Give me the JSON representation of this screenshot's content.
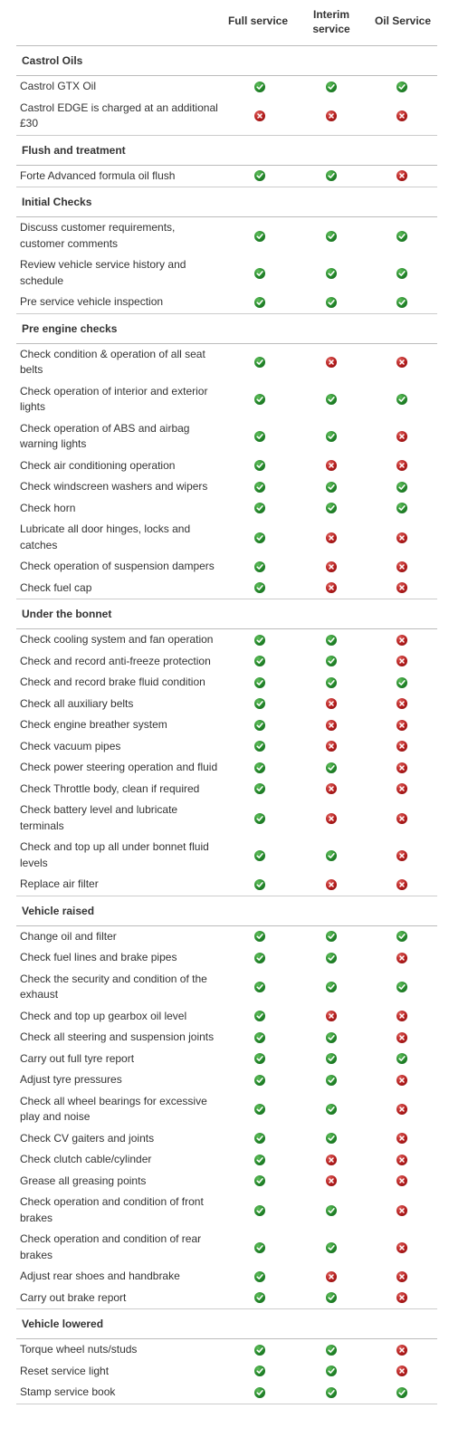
{
  "header": {
    "full_label": "Full service",
    "interim_label": "Interim service",
    "oil_label": "Oil Service"
  },
  "status_icons": {
    "yes": "check-icon",
    "no": "cross-icon",
    "yes_color": "#23862a",
    "no_color": "#b21b1b"
  },
  "sections": [
    {
      "title": "Castrol Oils",
      "rows": [
        {
          "label": "Castrol GTX Oil",
          "values": [
            true,
            true,
            true
          ]
        },
        {
          "label": "Castrol EDGE is charged at an additional £30",
          "values": [
            false,
            false,
            false
          ]
        }
      ]
    },
    {
      "title": "Flush and treatment",
      "rows": [
        {
          "label": "Forte Advanced formula oil flush",
          "values": [
            true,
            true,
            false
          ]
        }
      ]
    },
    {
      "title": "Initial Checks",
      "rows": [
        {
          "label": "Discuss customer requirements, customer comments",
          "values": [
            true,
            true,
            true
          ]
        },
        {
          "label": "Review vehicle service history and schedule",
          "values": [
            true,
            true,
            true
          ]
        },
        {
          "label": "Pre service vehicle inspection",
          "values": [
            true,
            true,
            true
          ]
        }
      ]
    },
    {
      "title": "Pre engine checks",
      "rows": [
        {
          "label": "Check condition & operation of all seat belts",
          "values": [
            true,
            false,
            false
          ]
        },
        {
          "label": "Check operation of interior and exterior lights",
          "values": [
            true,
            true,
            true
          ]
        },
        {
          "label": "Check operation of ABS and airbag warning lights",
          "values": [
            true,
            true,
            false
          ]
        },
        {
          "label": "Check air conditioning operation",
          "values": [
            true,
            false,
            false
          ]
        },
        {
          "label": "Check windscreen washers and wipers",
          "values": [
            true,
            true,
            true
          ]
        },
        {
          "label": "Check horn",
          "values": [
            true,
            true,
            true
          ]
        },
        {
          "label": "Lubricate all door hinges, locks and catches",
          "values": [
            true,
            false,
            false
          ]
        },
        {
          "label": "Check operation of suspension dampers",
          "values": [
            true,
            false,
            false
          ]
        },
        {
          "label": "Check fuel cap",
          "values": [
            true,
            false,
            false
          ]
        }
      ]
    },
    {
      "title": "Under the bonnet",
      "rows": [
        {
          "label": "Check cooling system and fan operation",
          "values": [
            true,
            true,
            false
          ]
        },
        {
          "label": "Check and record anti-freeze protection",
          "values": [
            true,
            true,
            false
          ]
        },
        {
          "label": "Check and record brake fluid condition",
          "values": [
            true,
            true,
            true
          ]
        },
        {
          "label": "Check all auxiliary belts",
          "values": [
            true,
            false,
            false
          ]
        },
        {
          "label": "Check engine breather system",
          "values": [
            true,
            false,
            false
          ]
        },
        {
          "label": "Check vacuum pipes",
          "values": [
            true,
            false,
            false
          ]
        },
        {
          "label": "Check power steering operation and fluid",
          "values": [
            true,
            true,
            false
          ]
        },
        {
          "label": "Check Throttle body, clean if required",
          "values": [
            true,
            false,
            false
          ]
        },
        {
          "label": "Check battery level and lubricate terminals",
          "values": [
            true,
            false,
            false
          ]
        },
        {
          "label": "Check and top up all under bonnet fluid levels",
          "values": [
            true,
            true,
            false
          ]
        },
        {
          "label": "Replace air filter",
          "values": [
            true,
            false,
            false
          ]
        }
      ]
    },
    {
      "title": "Vehicle raised",
      "rows": [
        {
          "label": "Change oil and filter",
          "values": [
            true,
            true,
            true
          ]
        },
        {
          "label": "Check fuel lines and brake pipes",
          "values": [
            true,
            true,
            false
          ]
        },
        {
          "label": "Check the security and condition of the exhaust",
          "values": [
            true,
            true,
            true
          ]
        },
        {
          "label": "Check and top up gearbox oil level",
          "values": [
            true,
            false,
            false
          ]
        },
        {
          "label": "Check all steering and suspension joints",
          "values": [
            true,
            true,
            false
          ]
        },
        {
          "label": "Carry out full tyre report",
          "values": [
            true,
            true,
            true
          ]
        },
        {
          "label": "Adjust tyre pressures",
          "values": [
            true,
            true,
            false
          ]
        },
        {
          "label": "Check all wheel bearings for excessive play and noise",
          "values": [
            true,
            true,
            false
          ]
        },
        {
          "label": "Check CV gaiters and joints",
          "values": [
            true,
            true,
            false
          ]
        },
        {
          "label": "Check clutch cable/cylinder",
          "values": [
            true,
            false,
            false
          ]
        },
        {
          "label": "Grease all greasing points",
          "values": [
            true,
            false,
            false
          ]
        },
        {
          "label": "Check operation and condition of front brakes",
          "values": [
            true,
            true,
            false
          ]
        },
        {
          "label": "Check operation and condition of rear brakes",
          "values": [
            true,
            true,
            false
          ]
        },
        {
          "label": "Adjust rear shoes and handbrake",
          "values": [
            true,
            false,
            false
          ]
        },
        {
          "label": "Carry out brake report",
          "values": [
            true,
            true,
            false
          ]
        }
      ]
    },
    {
      "title": "Vehicle lowered",
      "rows": [
        {
          "label": "Torque wheel nuts/studs",
          "values": [
            true,
            true,
            false
          ]
        },
        {
          "label": "Reset service light",
          "values": [
            true,
            true,
            false
          ]
        },
        {
          "label": "Stamp service book",
          "values": [
            true,
            true,
            true
          ]
        }
      ]
    }
  ]
}
